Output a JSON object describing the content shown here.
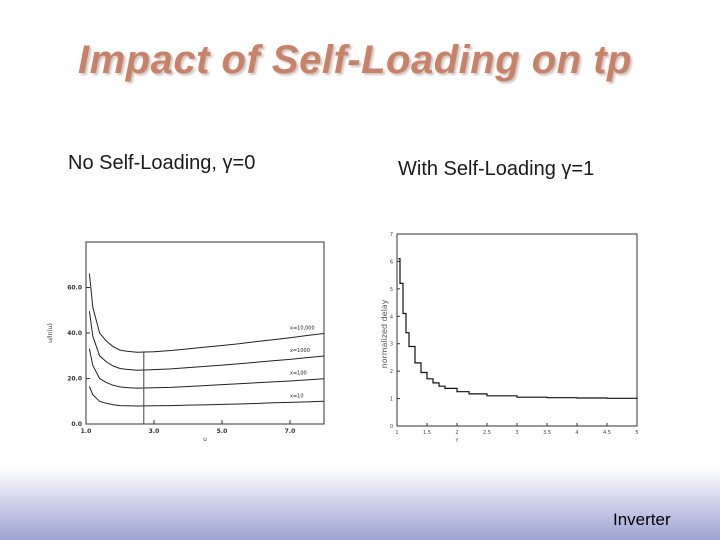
{
  "slide": {
    "title": "Impact of Self-Loading on tp",
    "left_subtitle": "No Self-Loading, γ=0",
    "right_subtitle": "With Self-Loading γ=1",
    "footer": "Inverter"
  },
  "chart_data": [
    {
      "type": "line",
      "title": "",
      "xlabel": "u",
      "ylabel": "u/ln(u)",
      "xlim": [
        1.0,
        8.0
      ],
      "ylim": [
        0.0,
        80.0
      ],
      "x_ticks": [
        "1.0",
        "3.0",
        "5.0",
        "7.0"
      ],
      "y_ticks": [
        "0.0",
        "20.0",
        "40.0",
        "60.0"
      ],
      "grid": false,
      "x": [
        1.1,
        1.2,
        1.4,
        1.6,
        1.8,
        2.0,
        2.2,
        2.5,
        3.0,
        3.5,
        4.0,
        4.5,
        5.0,
        5.5,
        6.0,
        6.5,
        7.0,
        7.5,
        8.0
      ],
      "series": [
        {
          "name": "x=10,000",
          "values": [
            66.1,
            51.4,
            40.0,
            36.4,
            34.0,
            32.5,
            32.0,
            31.5,
            31.8,
            32.3,
            33.0,
            33.8,
            34.5,
            35.3,
            36.2,
            37.0,
            37.9,
            38.9,
            39.8
          ]
        },
        {
          "name": "x=1000",
          "values": [
            49.6,
            38.6,
            30.0,
            27.3,
            25.5,
            24.4,
            24.0,
            23.6,
            23.9,
            24.2,
            24.8,
            25.3,
            25.9,
            26.5,
            27.1,
            27.8,
            28.4,
            29.2,
            29.9
          ]
        },
        {
          "name": "x=100",
          "values": [
            33.1,
            25.7,
            20.0,
            18.2,
            17.0,
            16.3,
            16.0,
            15.8,
            15.9,
            16.1,
            16.5,
            16.9,
            17.3,
            17.7,
            18.1,
            18.5,
            18.9,
            19.4,
            19.9
          ]
        },
        {
          "name": "x=10",
          "values": [
            16.5,
            12.9,
            10.0,
            9.1,
            8.5,
            8.1,
            8.0,
            7.9,
            8.0,
            8.1,
            8.3,
            8.4,
            8.6,
            8.8,
            9.0,
            9.3,
            9.5,
            9.7,
            10.0
          ]
        }
      ],
      "annotations": [
        {
          "type": "vline",
          "x": 2.7,
          "from_y": 0.0,
          "to_y": 32.0
        }
      ]
    },
    {
      "type": "line",
      "title": "",
      "xlabel": "f",
      "ylabel": "normalized delay",
      "xlim": [
        1,
        5
      ],
      "ylim": [
        0,
        7
      ],
      "x_ticks": [
        "1",
        "1.5",
        "2",
        "2.5",
        "3",
        "3.5",
        "4",
        "4.5",
        "5"
      ],
      "y_ticks": [
        "0",
        "1",
        "2",
        "3",
        "4",
        "5",
        "6",
        "7"
      ],
      "grid": false,
      "series": [
        {
          "name": "",
          "x": [
            1.02,
            1.05,
            1.1,
            1.15,
            1.2,
            1.3,
            1.4,
            1.5,
            1.6,
            1.7,
            1.8,
            2.0,
            2.2,
            2.5,
            3.0,
            3.5,
            4.0,
            4.5,
            5.0
          ],
          "values": [
            6.1,
            5.2,
            4.1,
            3.4,
            2.9,
            2.3,
            1.95,
            1.72,
            1.57,
            1.45,
            1.37,
            1.25,
            1.17,
            1.1,
            1.05,
            1.03,
            1.02,
            1.01,
            1.0
          ]
        }
      ]
    }
  ]
}
